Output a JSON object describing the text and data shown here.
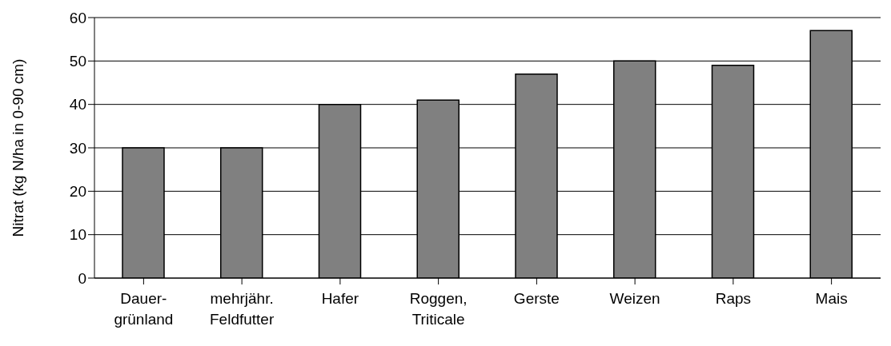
{
  "chart_data": {
    "type": "bar",
    "ylabel": "Nitrat (kg N/ha in 0-90 cm)",
    "categories": [
      "Dauer-\ngrünland",
      "mehrjähr.\nFeldfutter",
      "Hafer",
      "Roggen,\nTriticale",
      "Gerste",
      "Weizen",
      "Raps",
      "Mais"
    ],
    "values": [
      30,
      30,
      40,
      41,
      47,
      50,
      49,
      57
    ],
    "color": "#808080",
    "ylim": [
      0,
      60
    ],
    "yticks": [
      0,
      10,
      20,
      30,
      40,
      50,
      60
    ],
    "grid": "y"
  }
}
